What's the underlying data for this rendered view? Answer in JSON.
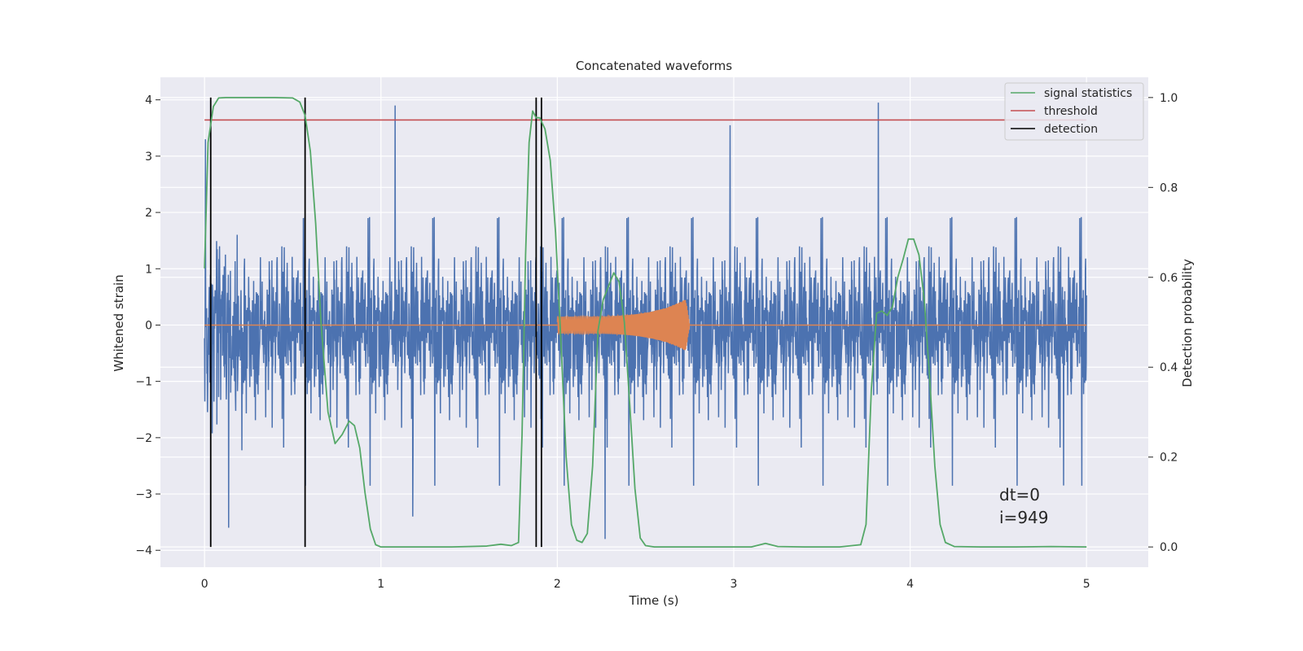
{
  "chart_data": {
    "type": "line",
    "title": "Concatenated waveforms",
    "xlabel": "Time (s)",
    "ylabel": "Whitened strain",
    "y2label": "Detection probability",
    "xlim": [
      -0.25,
      5.35
    ],
    "ylim": [
      -4.3,
      4.4
    ],
    "y2lim": [
      -0.045,
      1.045
    ],
    "xticks": [
      0,
      1,
      2,
      3,
      4,
      5
    ],
    "yticks": [
      -4,
      -3,
      -2,
      -1,
      0,
      1,
      2,
      3,
      4
    ],
    "y2ticks": [
      0.0,
      0.2,
      0.4,
      0.6,
      0.8,
      1.0
    ],
    "grid": true,
    "legend_position": "top-right",
    "colors": {
      "strain": "#4c72b0",
      "injection": "#dd8452",
      "signal_statistics": "#55a868",
      "threshold": "#c44e52",
      "detection": "#000000",
      "background": "#eaeaf2"
    },
    "series": [
      {
        "name": "signal statistics",
        "axis": "right",
        "x": [
          0.0,
          0.02,
          0.05,
          0.08,
          0.12,
          0.2,
          0.3,
          0.4,
          0.5,
          0.54,
          0.57,
          0.6,
          0.63,
          0.66,
          0.7,
          0.74,
          0.78,
          0.82,
          0.85,
          0.88,
          0.91,
          0.94,
          0.97,
          1.0,
          1.2,
          1.4,
          1.6,
          1.68,
          1.74,
          1.78,
          1.8,
          1.82,
          1.84,
          1.86,
          1.88,
          1.9,
          1.93,
          1.96,
          1.99,
          2.02,
          2.05,
          2.08,
          2.11,
          2.14,
          2.17,
          2.2,
          2.23,
          2.26,
          2.29,
          2.32,
          2.35,
          2.38,
          2.41,
          2.44,
          2.47,
          2.5,
          2.55,
          2.7,
          2.9,
          3.1,
          3.18,
          3.25,
          3.4,
          3.6,
          3.72,
          3.75,
          3.78,
          3.81,
          3.84,
          3.87,
          3.9,
          3.93,
          3.96,
          3.99,
          4.02,
          4.05,
          4.08,
          4.11,
          4.14,
          4.17,
          4.2,
          4.25,
          4.4,
          4.6,
          4.8,
          5.0
        ],
        "y": [
          0.62,
          0.9,
          0.98,
          0.999,
          1.0,
          1.0,
          1.0,
          1.0,
          0.999,
          0.99,
          0.96,
          0.88,
          0.72,
          0.5,
          0.3,
          0.23,
          0.25,
          0.28,
          0.27,
          0.22,
          0.12,
          0.04,
          0.005,
          0.0,
          0.0,
          0.0,
          0.002,
          0.006,
          0.003,
          0.01,
          0.25,
          0.65,
          0.9,
          0.97,
          0.955,
          0.955,
          0.93,
          0.86,
          0.7,
          0.46,
          0.2,
          0.05,
          0.015,
          0.01,
          0.03,
          0.18,
          0.48,
          0.55,
          0.58,
          0.61,
          0.59,
          0.5,
          0.32,
          0.13,
          0.02,
          0.003,
          0.0,
          0.0,
          0.0,
          0.0,
          0.008,
          0.001,
          0.0,
          0.0,
          0.005,
          0.05,
          0.35,
          0.52,
          0.525,
          0.515,
          0.535,
          0.6,
          0.64,
          0.685,
          0.685,
          0.65,
          0.55,
          0.38,
          0.18,
          0.05,
          0.01,
          0.001,
          0.0,
          0.0,
          0.001,
          0.0
        ]
      },
      {
        "name": "threshold",
        "axis": "right",
        "x": [
          0.0,
          5.0
        ],
        "y": [
          0.95,
          0.95
        ]
      },
      {
        "name": "detection",
        "axis": "right",
        "type": "vlines",
        "x": [
          0.035,
          0.57,
          1.88,
          1.91
        ],
        "y_range": [
          0.0,
          1.0
        ]
      }
    ],
    "strain_noise": {
      "axis": "left",
      "x_range": [
        0.0,
        5.0
      ],
      "spikes": [
        {
          "x": 0.005,
          "y": 3.3
        },
        {
          "x": 1.08,
          "y": 3.9
        },
        {
          "x": 1.18,
          "y": -3.4
        },
        {
          "x": 2.27,
          "y": -3.8
        },
        {
          "x": 2.98,
          "y": 3.55
        },
        {
          "x": 3.82,
          "y": 3.95
        },
        {
          "x": 4.87,
          "y": -2.85
        }
      ]
    },
    "injection": {
      "axis": "left",
      "x_start": 2.0,
      "x_end": 2.75,
      "amplitude_start": 0.15,
      "amplitude_peak": 0.5
    },
    "annotations": [
      "dt=0",
      "i=949"
    ]
  }
}
